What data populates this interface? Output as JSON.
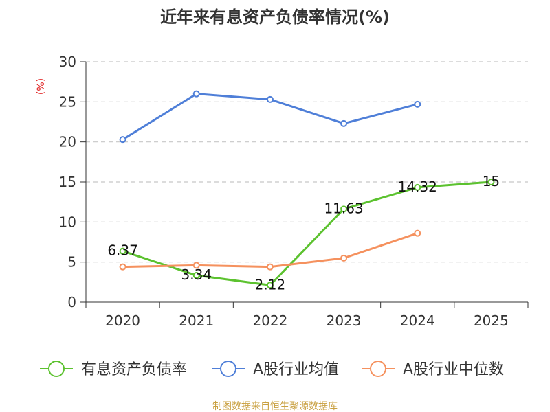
{
  "chart_data": {
    "type": "line",
    "title": "近年来有息资产负债率情况(%)",
    "ylabel": "(%)",
    "xlabel": "",
    "categories": [
      "2020",
      "2021",
      "2022",
      "2023",
      "2024",
      "2025"
    ],
    "ylim": [
      0,
      30
    ],
    "yticks": [
      0,
      5,
      10,
      15,
      20,
      25,
      30
    ],
    "grid": "horizontal dashed",
    "legend_position": "bottom",
    "series": [
      {
        "name": "有息资产负债率",
        "color": "#5cc22f",
        "values": [
          6.37,
          3.34,
          2.12,
          11.63,
          14.32,
          15
        ],
        "labels": [
          "6.37",
          "3.34",
          "2.12",
          "11.63",
          "14.32",
          "15"
        ]
      },
      {
        "name": "A股行业均值",
        "color": "#4f7fd8",
        "values": [
          20.3,
          26.0,
          25.3,
          22.3,
          24.7,
          null
        ]
      },
      {
        "name": "A股行业中位数",
        "color": "#f5915e",
        "values": [
          4.4,
          4.6,
          4.4,
          5.5,
          8.6,
          null
        ]
      }
    ]
  },
  "source_note": "制图数据来自恒生聚源数据库"
}
